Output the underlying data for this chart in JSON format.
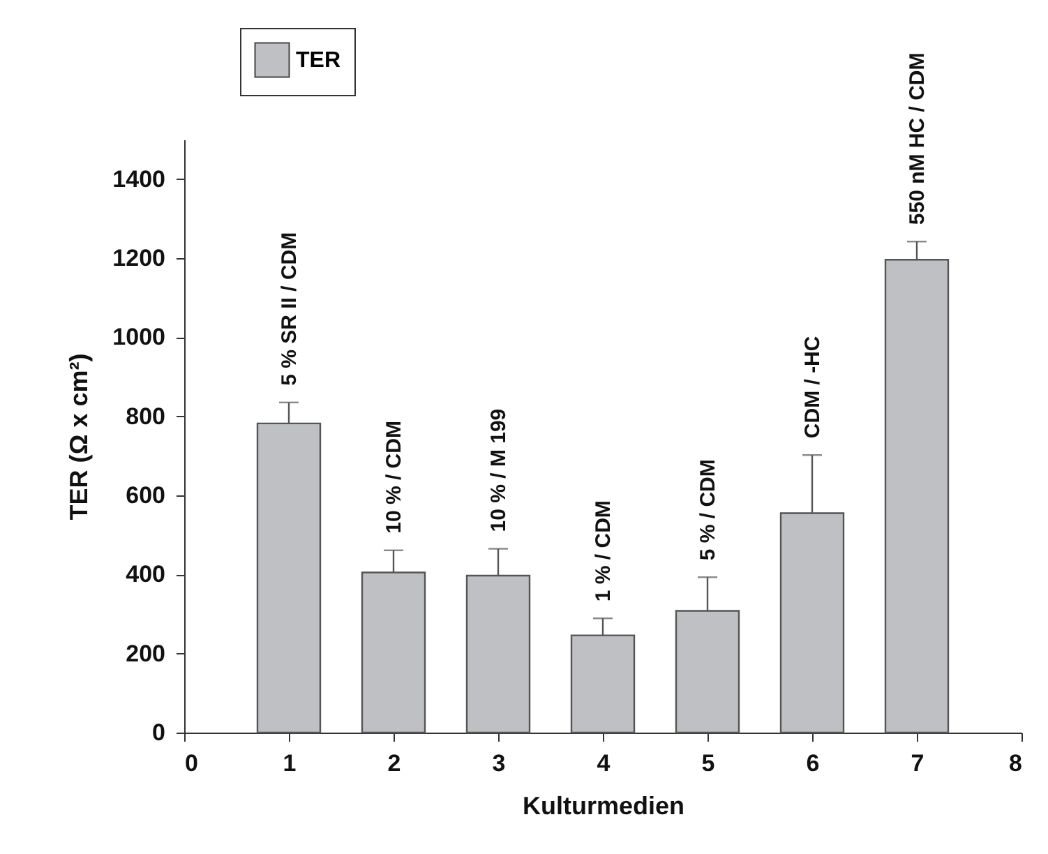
{
  "chart_data": {
    "type": "bar",
    "xlabel": "Kulturmedien",
    "ylabel": "TER (Ω x cm²)",
    "x": [
      1,
      2,
      3,
      4,
      5,
      6,
      7
    ],
    "series": [
      {
        "name": "TER",
        "color": "#bfc0c4",
        "values": [
          782,
          405,
          397,
          246,
          308,
          555,
          1196
        ],
        "errors": [
          53,
          56,
          68,
          43,
          85,
          147,
          46
        ]
      }
    ],
    "xlim": [
      0,
      8
    ],
    "xticks": [
      0,
      1,
      2,
      3,
      4,
      5,
      6,
      7,
      8
    ],
    "ylim": [
      0,
      1500
    ],
    "yticks": [
      0,
      200,
      400,
      600,
      800,
      1000,
      1200,
      1400
    ],
    "grid": false,
    "legend": "top left",
    "annotations": [
      {
        "text": "5 % SR II / CDM",
        "x": 1,
        "y": 782
      },
      {
        "text": "10 % / CDM",
        "x": 2,
        "y": 405
      },
      {
        "text": "10 % / M 199",
        "x": 3,
        "y": 397
      },
      {
        "text": "1 % / CDM",
        "x": 4,
        "y": 246
      },
      {
        "text": "5 % / CDM",
        "x": 5,
        "y": 308
      },
      "CDM / -HC",
      {
        "text": "550 nM HC / CDM",
        "x": 7,
        "y": 1196
      }
    ]
  }
}
